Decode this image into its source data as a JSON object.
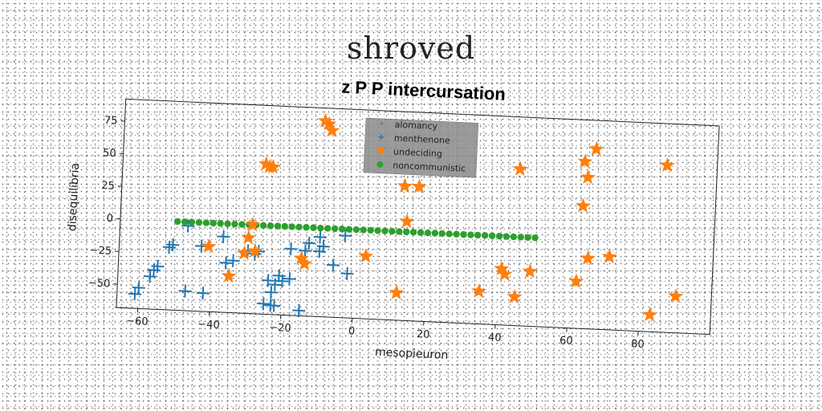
{
  "page": {
    "title": "shroved"
  },
  "chart_data": {
    "type": "scatter",
    "title": "z P P intercursation",
    "xlabel": "mesopieuron",
    "ylabel": "disequilibria",
    "xlim": [
      -66,
      100
    ],
    "ylim": [
      -68,
      92
    ],
    "xticks": [
      -60,
      -40,
      -20,
      0,
      20,
      40,
      60,
      80
    ],
    "yticks": [
      -50,
      -25,
      0,
      25,
      50,
      75
    ],
    "grid": false,
    "legend": {
      "position": "top-center",
      "entries": [
        "alomancy",
        "menthenone",
        "undeciding",
        "noncommunistic"
      ]
    },
    "series": [
      {
        "name": "alomancy",
        "marker": "point",
        "color": "#1f77b4",
        "x": [],
        "y": []
      },
      {
        "name": "menthenone",
        "marker": "plus",
        "color": "#1f77b4",
        "x": [
          -61,
          -60,
          -57,
          -56,
          -55,
          -52,
          -51,
          -47,
          -47,
          -43,
          -42,
          -37,
          -36,
          -34,
          -30,
          -28,
          -27,
          -25,
          -24,
          -23,
          -23,
          -22,
          -22,
          -21,
          -20,
          -18,
          -18,
          -15,
          -14,
          -13,
          -10,
          -10,
          -9,
          -6,
          -3,
          -2
        ],
        "y": [
          -57,
          -52,
          -43,
          -38,
          -35,
          -20,
          -18,
          -3,
          -53,
          -18,
          -54,
          -10,
          -30,
          -28,
          -20,
          -22,
          -20,
          -60,
          -42,
          -61,
          -51,
          -45,
          -61,
          -38,
          -42,
          -17,
          -40,
          -64,
          -18,
          -12,
          -18,
          -7,
          -14,
          -28,
          -5,
          -34
        ]
      },
      {
        "name": "undeciding",
        "marker": "star",
        "color": "#ff7f0e",
        "x": [
          -41,
          -35,
          -31,
          -30,
          -29,
          -28,
          -26,
          -25,
          -24,
          -15,
          -14,
          -10,
          -9,
          -8,
          3,
          12,
          13,
          14,
          17,
          35,
          41,
          42,
          45,
          45,
          49,
          62,
          63,
          63,
          64,
          65,
          66,
          71,
          83,
          86,
          90
        ],
        "y": [
          -18,
          -40,
          -22,
          -10,
          0,
          -20,
          47,
          45,
          45,
          -24,
          -28,
          82,
          80,
          75,
          -20,
          -47,
          35,
          8,
          35,
          -43,
          -25,
          -29,
          52,
          -46,
          -26,
          -32,
          60,
          26,
          48,
          -14,
          70,
          -12,
          -55,
          60,
          -40
        ]
      },
      {
        "name": "noncommunistic",
        "marker": "circle",
        "color": "#2ca02c",
        "x_range": [
          -50,
          50
        ],
        "y_constant": 0,
        "count": 51
      }
    ]
  }
}
